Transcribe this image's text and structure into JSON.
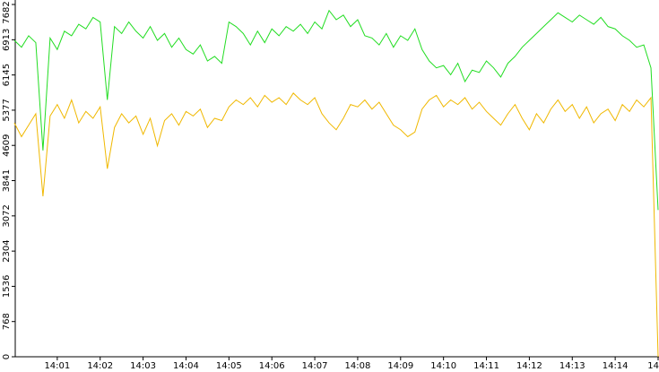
{
  "chart_data": {
    "type": "line",
    "x": [
      0,
      10,
      20,
      30,
      40,
      50,
      60,
      70,
      80,
      90,
      100,
      110,
      120,
      130,
      140,
      150,
      160,
      170,
      180,
      190,
      200,
      210,
      220,
      230,
      240,
      250,
      260,
      270,
      280,
      290,
      300,
      310,
      320,
      330,
      340,
      350,
      360,
      370,
      380,
      390,
      400,
      410,
      420,
      430,
      440,
      450,
      460,
      470,
      480,
      490,
      500,
      510,
      520,
      530,
      540,
      550,
      560,
      570,
      580,
      590,
      600,
      610,
      620,
      630,
      640,
      650,
      660,
      670,
      680,
      690,
      700,
      710,
      720,
      730,
      740,
      750,
      760,
      770,
      780,
      790,
      800,
      810,
      820,
      830,
      840,
      850,
      860,
      870,
      880,
      890,
      900
    ],
    "series": [
      {
        "name": "green",
        "color": "#22dd22",
        "values": [
          6900,
          6750,
          7000,
          6850,
          4500,
          6950,
          6700,
          7100,
          7000,
          7250,
          7150,
          7400,
          7300,
          5600,
          7200,
          7050,
          7300,
          7100,
          6950,
          7200,
          6900,
          7050,
          6750,
          6950,
          6700,
          6600,
          6800,
          6450,
          6550,
          6400,
          7300,
          7200,
          7050,
          6800,
          7100,
          6850,
          7150,
          7000,
          7200,
          7100,
          7250,
          7050,
          7300,
          7150,
          7550,
          7350,
          7450,
          7200,
          7350,
          7000,
          6950,
          6800,
          7050,
          6750,
          7000,
          6900,
          7150,
          6700,
          6450,
          6300,
          6350,
          6150,
          6400,
          6000,
          6250,
          6200,
          6450,
          6300,
          6100,
          6400,
          6550,
          6750,
          6900,
          7050,
          7200,
          7350,
          7500,
          7400,
          7300,
          7450,
          7350,
          7250,
          7400,
          7200,
          7150,
          7000,
          6900,
          6750,
          6800,
          6300,
          3200
        ]
      },
      {
        "name": "yellow",
        "color": "#f0b800",
        "values": [
          5100,
          4800,
          5050,
          5300,
          3500,
          5250,
          5500,
          5200,
          5600,
          5100,
          5350,
          5200,
          5450,
          4100,
          5000,
          5300,
          5100,
          5250,
          4850,
          5200,
          4600,
          5150,
          5300,
          5050,
          5350,
          5250,
          5400,
          5000,
          5200,
          5150,
          5450,
          5600,
          5500,
          5650,
          5450,
          5700,
          5550,
          5650,
          5500,
          5750,
          5600,
          5500,
          5650,
          5300,
          5100,
          4950,
          5200,
          5500,
          5450,
          5600,
          5400,
          5550,
          5300,
          5050,
          4950,
          4800,
          4900,
          5400,
          5600,
          5700,
          5450,
          5600,
          5500,
          5650,
          5400,
          5550,
          5350,
          5200,
          5050,
          5300,
          5500,
          5200,
          4950,
          5300,
          5100,
          5400,
          5600,
          5350,
          5500,
          5200,
          5450,
          5100,
          5300,
          5400,
          5150,
          5500,
          5350,
          5600,
          5450,
          5650,
          0
        ]
      }
    ],
    "xlim": [
      0,
      900
    ],
    "xticks": [
      {
        "value": 60,
        "label": "14:01"
      },
      {
        "value": 120,
        "label": "14:02"
      },
      {
        "value": 180,
        "label": "14:03"
      },
      {
        "value": 240,
        "label": "14:04"
      },
      {
        "value": 300,
        "label": "14:05"
      },
      {
        "value": 360,
        "label": "14:06"
      },
      {
        "value": 420,
        "label": "14:07"
      },
      {
        "value": 480,
        "label": "14:08"
      },
      {
        "value": 540,
        "label": "14:09"
      },
      {
        "value": 600,
        "label": "14:10"
      },
      {
        "value": 660,
        "label": "14:11"
      },
      {
        "value": 720,
        "label": "14:12"
      },
      {
        "value": 780,
        "label": "14:13"
      },
      {
        "value": 840,
        "label": "14:14"
      },
      {
        "value": 900,
        "label": "14"
      }
    ],
    "ylim": [
      0,
      7682
    ],
    "yticks": [
      0,
      768,
      1536,
      2304,
      3072,
      3841,
      4609,
      5377,
      6145,
      6913,
      7682
    ]
  }
}
